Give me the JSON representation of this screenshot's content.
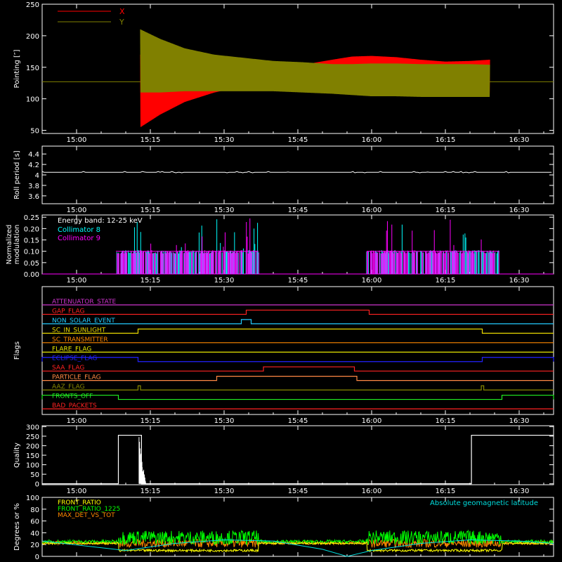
{
  "chart_data": [
    {
      "type": "line",
      "id": "pointing",
      "ylabel": "Pointing [″]",
      "ylim": [
        45,
        250
      ],
      "yticks": [
        50,
        100,
        150,
        200,
        250
      ],
      "xticks": [
        "15:00",
        "15:15",
        "15:30",
        "15:45",
        "16:00",
        "16:15",
        "16:30"
      ],
      "x_range_min": [
        -7,
        97
      ],
      "baseline": 127,
      "series": [
        {
          "name": "X",
          "color": "#ff0000",
          "envelope_x": [
            13,
            17,
            22,
            28,
            34,
            40,
            46,
            52,
            56,
            60,
            65,
            70,
            75,
            80,
            84
          ],
          "upper": [
            170,
            160,
            148,
            142,
            140,
            146,
            154,
            162,
            167,
            168,
            166,
            162,
            159,
            160,
            162
          ],
          "lower": [
            55,
            75,
            95,
            110,
            120,
            126,
            128,
            128,
            126,
            124,
            118,
            112,
            108,
            108,
            108
          ]
        },
        {
          "name": "Y",
          "color": "#808000",
          "envelope_x": [
            13,
            17,
            22,
            28,
            34,
            40,
            46,
            52,
            56,
            60,
            65,
            70,
            75,
            80,
            84
          ],
          "upper": [
            210,
            195,
            180,
            170,
            165,
            160,
            158,
            155,
            155,
            156,
            156,
            155,
            155,
            155,
            154
          ],
          "lower": [
            110,
            110,
            112,
            112,
            112,
            112,
            110,
            108,
            106,
            104,
            104,
            103,
            103,
            103,
            103
          ]
        }
      ]
    },
    {
      "type": "line",
      "id": "roll",
      "ylabel": "Roll period [s]",
      "ylim": [
        3.45,
        4.55
      ],
      "yticks": [
        3.6,
        3.8,
        4.0,
        4.2,
        4.4
      ],
      "xticks": [
        "15:00",
        "15:15",
        "15:30",
        "15:45",
        "16:00",
        "16:15",
        "16:30"
      ],
      "series": [
        {
          "name": "",
          "color": "#ffffff",
          "value": 4.05
        }
      ]
    },
    {
      "type": "bar",
      "id": "modulation",
      "ylabel": "Normalized modulation",
      "ylim": [
        0,
        0.26
      ],
      "yticks": [
        0.0,
        0.05,
        0.1,
        0.15,
        0.2,
        0.25
      ],
      "yticklabels": [
        "0.00",
        "0.05",
        "0.10",
        "0.15",
        "0.20",
        "0.25"
      ],
      "xticks": [
        "15:00",
        "15:15",
        "15:30",
        "15:45",
        "16:00",
        "16:15",
        "16:30"
      ],
      "annotation": "Energy band: 12-25 keV",
      "active_intervals": [
        [
          8,
          37
        ],
        [
          59,
          86
        ]
      ],
      "typical_value": 0.1,
      "peak_value": 0.25,
      "series": [
        {
          "name": "Collimator 8",
          "color": "#00ffff"
        },
        {
          "name": "Collimator 9",
          "color": "#ff00ff"
        }
      ]
    },
    {
      "type": "line",
      "id": "flags",
      "ylabel": "Flags",
      "xticks": [
        "15:00",
        "15:15",
        "15:30",
        "15:45",
        "16:00",
        "16:15",
        "16:30"
      ],
      "series": [
        {
          "name": "ATTENUATOR_STATE",
          "color": "#cc33cc",
          "high": []
        },
        {
          "name": "GAP_FLAG",
          "color": "#ff2222",
          "high": [
            [
              34.5,
              59.5
            ]
          ]
        },
        {
          "name": "NON_SOLAR_EVENT",
          "color": "#22ccff",
          "high": [
            [
              33.5,
              35.5
            ]
          ]
        },
        {
          "name": "SC_IN_SUNLIGHT",
          "color": "#e8d800",
          "high": [
            [
              12.5,
              82.5
            ]
          ]
        },
        {
          "name": "SC_TRANSMITTER",
          "color": "#ff8800",
          "high": []
        },
        {
          "name": "FLARE_FLAG",
          "color": "#e8e800",
          "high": []
        },
        {
          "name": "ECLIPSE_FLAG",
          "color": "#2222ff",
          "high": [
            [
              -7,
              12.5
            ],
            [
              82.5,
              97
            ]
          ]
        },
        {
          "name": "SAA_FLAG",
          "color": "#ff2222",
          "high": [
            [
              38,
              56.5
            ]
          ]
        },
        {
          "name": "PARTICLE_FLAG",
          "color": "#ff8844",
          "high": [
            [
              28.5,
              57
            ]
          ]
        },
        {
          "name": "AAZ_FLAG",
          "color": "#888800",
          "high": [
            [
              12.5,
              13
            ],
            [
              82.3,
              82.8
            ]
          ]
        },
        {
          "name": "FRONTS_OFF",
          "color": "#22ee22",
          "high": [
            [
              -7,
              8.5
            ],
            [
              86.5,
              97
            ]
          ]
        },
        {
          "name": "BAD_PACKETS",
          "color": "#ff2222",
          "high": []
        }
      ]
    },
    {
      "type": "bar",
      "id": "quality",
      "ylabel": "Quality",
      "ylim": [
        -5,
        305
      ],
      "yticks": [
        0,
        50,
        100,
        150,
        200,
        250,
        300
      ],
      "xticks": [
        "15:00",
        "15:15",
        "15:30",
        "15:45",
        "16:00",
        "16:15",
        "16:30"
      ],
      "series": [
        {
          "name": "",
          "color": "#ffffff",
          "steps": [
            [
              -7,
              0
            ],
            [
              8.5,
              255
            ],
            [
              13.2,
              0
            ],
            [
              80.3,
              255
            ],
            [
              97,
              255
            ]
          ]
        }
      ]
    },
    {
      "type": "line",
      "id": "ratios",
      "ylabel": "Degrees or %",
      "ylim": [
        0,
        100
      ],
      "yticks": [
        0,
        20,
        40,
        60,
        80,
        100
      ],
      "annotation": "Absolute geomagnetic latitude",
      "series": [
        {
          "name": "FRONT_RATIO",
          "color": "#ffff00",
          "level": 10
        },
        {
          "name": "FRONT_RATIO_1225",
          "color": "#00ff00",
          "level": 32
        },
        {
          "name": "MAX_DET_VS_TOT",
          "color": "#ff8800",
          "level": 22
        },
        {
          "name": "Absolute geomagnetic latitude",
          "color": "#00dddd",
          "x": [
            -7,
            10,
            20,
            30,
            40,
            50,
            55,
            60,
            70,
            80,
            90,
            97
          ],
          "values": [
            26,
            10,
            22,
            28,
            26,
            12,
            0,
            10,
            22,
            28,
            26,
            22
          ]
        }
      ]
    }
  ]
}
